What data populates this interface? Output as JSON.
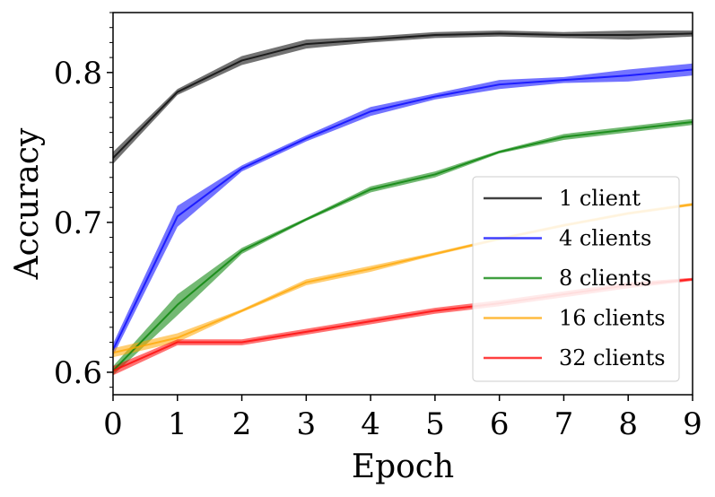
{
  "chart_data": {
    "type": "line",
    "title": "",
    "xlabel": "Epoch",
    "ylabel": "Accuracy",
    "x": [
      0,
      1,
      2,
      3,
      4,
      5,
      6,
      7,
      8,
      9
    ],
    "xlim": [
      0,
      9
    ],
    "ylim": [
      0.585,
      0.84
    ],
    "xticks": [
      "0",
      "1",
      "2",
      "3",
      "4",
      "5",
      "6",
      "7",
      "8",
      "9"
    ],
    "yticks": [
      {
        "value": 0.6,
        "label": "0.6"
      },
      {
        "value": 0.7,
        "label": "0.7"
      },
      {
        "value": 0.8,
        "label": "0.8"
      }
    ],
    "grid": false,
    "legend_position": "center-right",
    "series": [
      {
        "name": "1 client",
        "color": "#000000",
        "values": [
          0.743,
          0.787,
          0.808,
          0.819,
          0.822,
          0.825,
          0.826,
          0.825,
          0.825,
          0.826
        ],
        "spread": [
          0.004,
          0.002,
          0.003,
          0.003,
          0.002,
          0.002,
          0.002,
          0.002,
          0.003,
          0.002
        ]
      },
      {
        "name": "4 clients",
        "color": "#0000ff",
        "values": [
          0.615,
          0.704,
          0.736,
          0.756,
          0.774,
          0.784,
          0.792,
          0.795,
          0.798,
          0.802
        ],
        "spread": [
          0.004,
          0.007,
          0.002,
          0.002,
          0.003,
          0.002,
          0.003,
          0.002,
          0.004,
          0.004
        ]
      },
      {
        "name": "8 clients",
        "color": "#008000",
        "values": [
          0.601,
          0.645,
          0.681,
          0.702,
          0.722,
          0.732,
          0.747,
          0.757,
          0.762,
          0.767
        ],
        "spread": [
          0.003,
          0.007,
          0.002,
          0.001,
          0.002,
          0.002,
          0.001,
          0.002,
          0.002,
          0.002
        ]
      },
      {
        "name": "16 clients",
        "color": "#ffa500",
        "values": [
          0.613,
          0.623,
          0.641,
          0.66,
          0.669,
          0.679,
          0.689,
          0.698,
          0.706,
          0.712
        ],
        "spread": [
          0.003,
          0.003,
          0.001,
          0.002,
          0.002,
          0.001,
          0.001,
          0.001,
          0.001,
          0.001
        ]
      },
      {
        "name": "32 clients",
        "color": "#ff0000",
        "values": [
          0.601,
          0.62,
          0.62,
          0.627,
          0.634,
          0.641,
          0.646,
          0.652,
          0.658,
          0.662
        ],
        "spread": [
          0.003,
          0.002,
          0.002,
          0.002,
          0.002,
          0.002,
          0.002,
          0.002,
          0.002,
          0.001
        ]
      }
    ]
  }
}
